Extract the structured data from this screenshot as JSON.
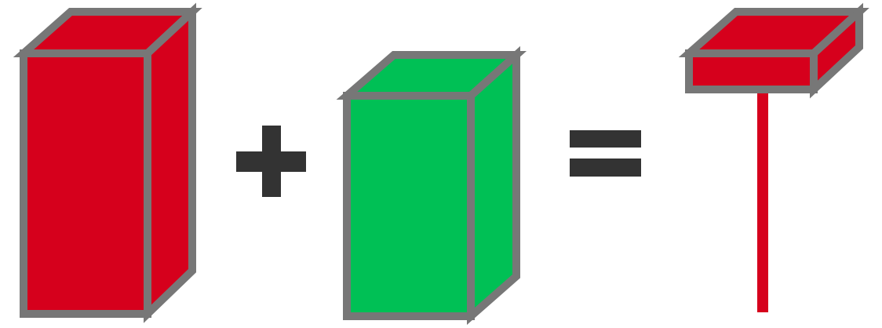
{
  "diagram": {
    "colors": {
      "red": "#d6001c",
      "green": "#00c055",
      "outline": "#777777",
      "operator": "#333333",
      "background": "#ffffff"
    },
    "items": [
      {
        "kind": "red-candle-body",
        "color": "red"
      },
      {
        "kind": "plus-operator",
        "color": "operator"
      },
      {
        "kind": "green-candle-body",
        "color": "green"
      },
      {
        "kind": "equals-operator",
        "color": "operator"
      },
      {
        "kind": "red-candle-with-wick",
        "color": "red"
      }
    ]
  }
}
